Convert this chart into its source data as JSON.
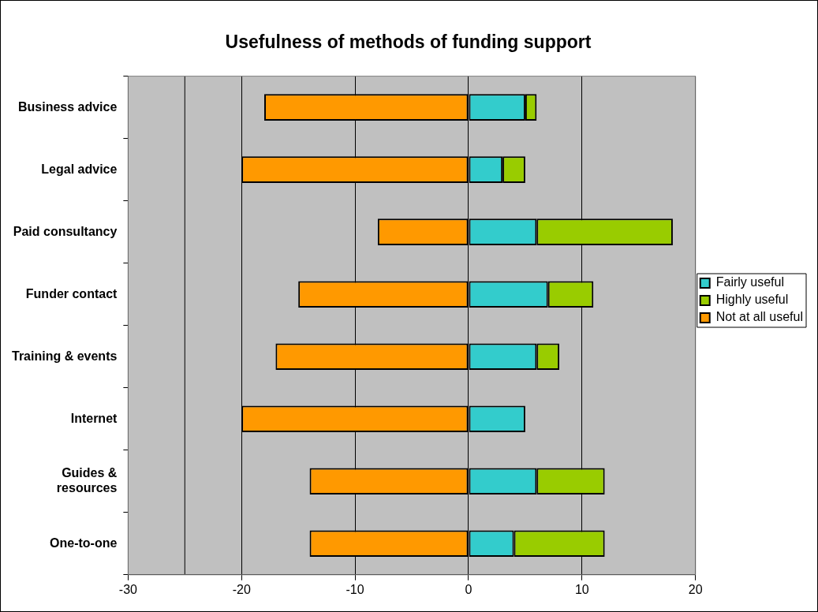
{
  "chart_data": {
    "type": "bar",
    "title": "Usefulness of methods of funding support",
    "orientation": "horizontal",
    "stacked": true,
    "categories": [
      "Business advice",
      "Legal advice",
      "Paid consultancy",
      "Funder contact",
      "Training & events",
      "Internet",
      "Guides & resources",
      "One-to-one"
    ],
    "series": [
      {
        "name": "Fairly useful",
        "color": "#33cccc",
        "values": [
          5,
          3,
          6,
          7,
          6,
          5,
          6,
          4
        ]
      },
      {
        "name": "Highly useful",
        "color": "#99cc00",
        "values": [
          1,
          2,
          12,
          4,
          2,
          0,
          6,
          8
        ]
      },
      {
        "name": "Not at all useful",
        "color": "#ff9900",
        "values": [
          -18,
          -20,
          -8,
          -15,
          -17,
          -20,
          -14,
          -14
        ]
      }
    ],
    "xlim": [
      -30,
      20
    ],
    "xticks": [
      -30,
      -20,
      -10,
      0,
      10,
      20
    ],
    "ref_lines": [
      {
        "axis": "x",
        "value": -25,
        "color": "#000000"
      }
    ],
    "grid": "x",
    "legend": "right"
  }
}
